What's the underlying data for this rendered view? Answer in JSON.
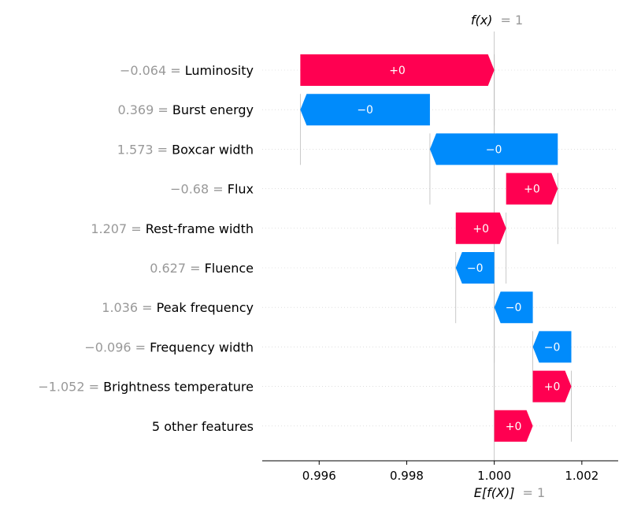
{
  "chart_data": {
    "type": "waterfall",
    "fx_label": "f(x)",
    "fx_value": "= 1",
    "base_label": "E[f(X)]",
    "base_value": "= 1",
    "xlim": [
      0.9947,
      1.00283
    ],
    "x_ticks": [
      0.996,
      0.998,
      1.0,
      1.002
    ],
    "x_tick_labels": [
      "0.996",
      "0.998",
      "1.000",
      "1.002"
    ],
    "expected_value": 1.0,
    "output_value": 1.0,
    "colors": {
      "positive": "#ff0051",
      "negative": "#008bfb"
    },
    "features": [
      {
        "value": "−0.064",
        "name": "Luminosity",
        "start": 0.99557,
        "end": 1.0,
        "label": "+0"
      },
      {
        "value": "0.369",
        "name": "Burst energy",
        "start": 0.99853,
        "end": 0.99557,
        "label": "−0"
      },
      {
        "value": "1.573",
        "name": "Boxcar width",
        "start": 1.00145,
        "end": 0.99853,
        "label": "−0"
      },
      {
        "value": "−0.68",
        "name": "Flux",
        "start": 1.00027,
        "end": 1.00145,
        "label": "+0"
      },
      {
        "value": "1.207",
        "name": "Rest-frame width",
        "start": 0.99912,
        "end": 1.00027,
        "label": "+0"
      },
      {
        "value": "0.627",
        "name": "Fluence",
        "start": 1.0,
        "end": 0.99912,
        "label": "−0"
      },
      {
        "value": "1.036",
        "name": "Peak frequency",
        "start": 1.00088,
        "end": 1.0,
        "label": "−0"
      },
      {
        "value": "−0.096",
        "name": "Frequency width",
        "start": 1.00176,
        "end": 1.00088,
        "label": "−0"
      },
      {
        "value": "−1.052",
        "name": "Brightness temperature",
        "start": 1.00088,
        "end": 1.00176,
        "label": "+0"
      },
      {
        "value": "",
        "name": "5 other features",
        "start": 1.0,
        "end": 1.00088,
        "label": "+0"
      }
    ]
  }
}
